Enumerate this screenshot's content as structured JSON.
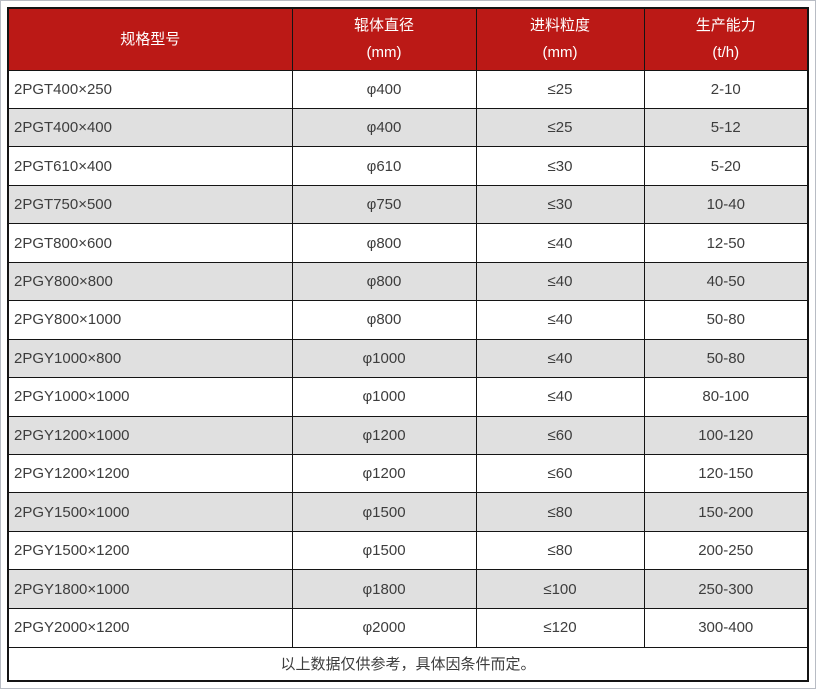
{
  "table": {
    "columns": [
      {
        "label": "规格型号",
        "unit": ""
      },
      {
        "label": "辊体直径",
        "unit": "(mm)"
      },
      {
        "label": "进料粒度",
        "unit": "(mm)"
      },
      {
        "label": "生产能力",
        "unit": "(t/h)"
      }
    ],
    "rows": [
      [
        "2PGT400×250",
        "φ400",
        "≤25",
        "2-10"
      ],
      [
        "2PGT400×400",
        "φ400",
        "≤25",
        "5-12"
      ],
      [
        "2PGT610×400",
        "φ610",
        "≤30",
        "5-20"
      ],
      [
        "2PGT750×500",
        "φ750",
        "≤30",
        "10-40"
      ],
      [
        "2PGT800×600",
        "φ800",
        "≤40",
        "12-50"
      ],
      [
        "2PGY800×800",
        "φ800",
        "≤40",
        "40-50"
      ],
      [
        "2PGY800×1000",
        "φ800",
        "≤40",
        "50-80"
      ],
      [
        "2PGY1000×800",
        "φ1000",
        "≤40",
        "50-80"
      ],
      [
        "2PGY1000×1000",
        "φ1000",
        "≤40",
        "80-100"
      ],
      [
        "2PGY1200×1000",
        "φ1200",
        "≤60",
        "100-120"
      ],
      [
        "2PGY1200×1200",
        "φ1200",
        "≤60",
        "120-150"
      ],
      [
        "2PGY1500×1000",
        "φ1500",
        "≤80",
        "150-200"
      ],
      [
        "2PGY1500×1200",
        "φ1500",
        "≤80",
        "200-250"
      ],
      [
        "2PGY1800×1000",
        "φ1800",
        "≤100",
        "250-300"
      ],
      [
        "2PGY2000×1200",
        "φ2000",
        "≤120",
        "300-400"
      ]
    ],
    "footer": "以上数据仅供参考，具体因条件而定。"
  },
  "colors": {
    "header_bg": "#bb1916",
    "header_text": "#ffffff",
    "row_bg": "#ffffff",
    "row_alt_bg": "#e0e0e0",
    "grid_border": "#141414",
    "body_text": "#3d3d3d"
  }
}
